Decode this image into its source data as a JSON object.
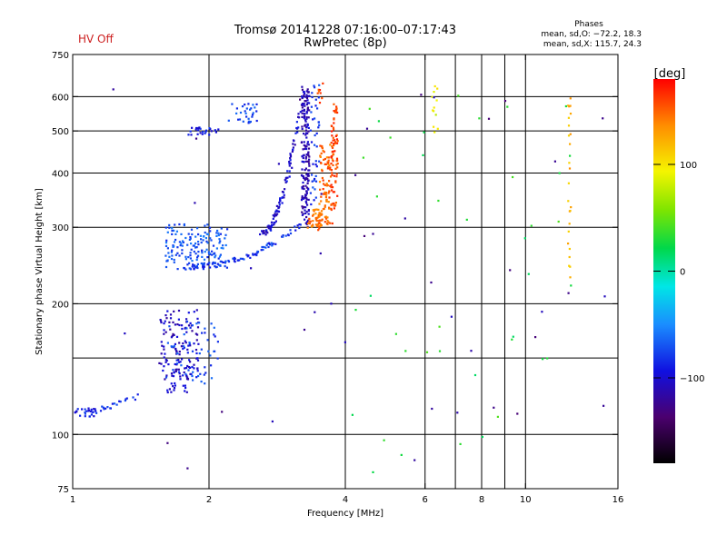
{
  "header": {
    "hv_status": "HV Off",
    "title": "Tromsø 20141228 07:16:00–07:17:43",
    "subtitle": "RwPretec (8p)",
    "phases_label": "Phases",
    "stats_o": "mean, sd,O: −72.2, 18.3",
    "stats_x": "mean, sd,X: 115.7, 24.3"
  },
  "colors": {
    "hv_status": "#cc1f1f",
    "axes": "#000000"
  },
  "colorbar": {
    "unit": "[deg]",
    "range": [
      -180,
      180
    ],
    "ticks": [
      {
        "value": 100,
        "label": "100"
      },
      {
        "value": 0,
        "label": "0"
      },
      {
        "value": -100,
        "label": "−100"
      }
    ]
  },
  "chart_data": {
    "type": "scatter",
    "xscale": "log",
    "yscale": "log",
    "xlim": [
      1,
      16
    ],
    "ylim": [
      75,
      750
    ],
    "xlabel": "Frequency [MHz]",
    "ylabel": "Stationary phase Virtual Height [km]",
    "grid": true,
    "x_ticks": [
      {
        "value": 1,
        "label": "1"
      },
      {
        "value": 2,
        "label": "2"
      },
      {
        "value": 4,
        "label": "4"
      },
      {
        "value": 6,
        "label": "6"
      },
      {
        "value": 8,
        "label": "8"
      },
      {
        "value": 10,
        "label": "10"
      },
      {
        "value": 16,
        "label": "16"
      }
    ],
    "x_grid": [
      2,
      4,
      6,
      7,
      8,
      9,
      10
    ],
    "y_ticks": [
      {
        "value": 75,
        "label": "75"
      },
      {
        "value": 100,
        "label": "100"
      },
      {
        "value": 200,
        "label": "200"
      },
      {
        "value": 300,
        "label": "300"
      },
      {
        "value": 400,
        "label": "400"
      },
      {
        "value": 500,
        "label": "500"
      },
      {
        "value": 600,
        "label": "600"
      },
      {
        "value": 750,
        "label": "750"
      }
    ],
    "y_grid": [
      100,
      150,
      200,
      300,
      400,
      500,
      600
    ],
    "color_variable": "phase [deg]",
    "point_groups": [
      {
        "f": [
          1.0,
          1.14
        ],
        "h": [
          110,
          115
        ],
        "phase": -90,
        "n": 30
      },
      {
        "f": [
          1.55,
          1.9
        ],
        "h": [
          125,
          195
        ],
        "phase": -105,
        "n": 140
      },
      {
        "f": [
          1.6,
          2.1
        ],
        "h": [
          130,
          185
        ],
        "phase": -75,
        "n": 60
      },
      {
        "f": [
          1.8,
          2.1
        ],
        "h": [
          490,
          510
        ],
        "phase": -90,
        "n": 25
      },
      {
        "f": [
          2.2,
          2.6
        ],
        "h": [
          520,
          580
        ],
        "phase": -75,
        "n": 30
      },
      {
        "f": [
          1.6,
          2.2
        ],
        "h": [
          240,
          305
        ],
        "phase": -70,
        "n": 160
      },
      {
        "f": [
          3.2,
          3.33
        ],
        "h": [
          300,
          640
        ],
        "phase": -110,
        "n": 180
      },
      {
        "f": [
          3.35,
          3.5
        ],
        "h": [
          320,
          640
        ],
        "phase": -80,
        "n": 40
      },
      {
        "f": [
          3.3,
          3.55
        ],
        "h": [
          295,
          330
        ],
        "phase": 145,
        "n": 50
      },
      {
        "f": [
          3.5,
          3.75
        ],
        "h": [
          305,
          470
        ],
        "phase": 150,
        "n": 90
      },
      {
        "f": [
          3.72,
          3.85
        ],
        "h": [
          330,
          580
        ],
        "phase": 160,
        "n": 70
      },
      {
        "f": [
          3.45,
          3.7
        ],
        "h": [
          580,
          645
        ],
        "phase": 160,
        "n": 8
      },
      {
        "f": [
          6.2,
          6.4
        ],
        "h": [
          480,
          640
        ],
        "phase": 90,
        "n": 12
      },
      {
        "f": [
          12.4,
          12.6
        ],
        "h": [
          230,
          600
        ],
        "phase": 120,
        "n": 25
      },
      {
        "f": [
          4.0,
          15.0
        ],
        "h": [
          80,
          640
        ],
        "phase": 30,
        "n": 40
      },
      {
        "f": [
          1.2,
          15.0
        ],
        "h": [
          80,
          640
        ],
        "phase": -120,
        "n": 45
      }
    ],
    "curve_groups": [
      {
        "f_start": 1.1,
        "f_end": 1.38,
        "h_start": 112,
        "h_end": 122,
        "phase": -80,
        "n": 20
      },
      {
        "f_start": 1.75,
        "f_end": 3.2,
        "h_start": 243,
        "h_end": 305,
        "phase": -80,
        "n": 90,
        "curvature": 2.2
      },
      {
        "f_start": 2.6,
        "f_end": 3.18,
        "h_start": 290,
        "h_end": 560,
        "phase": -100,
        "n": 100,
        "curvature": 2.0
      }
    ]
  }
}
